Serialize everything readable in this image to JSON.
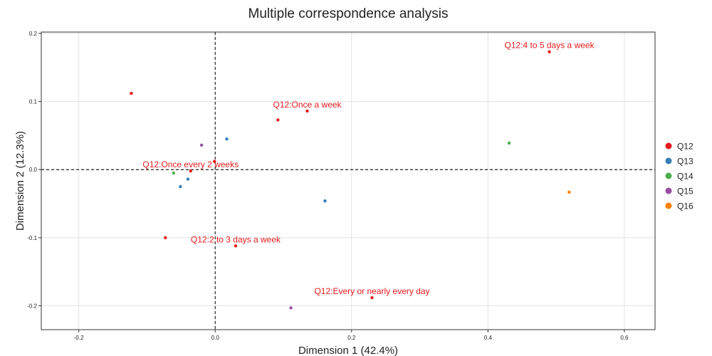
{
  "chart_data": {
    "type": "scatter",
    "title": "Multiple correspondence analysis",
    "xlabel": "Dimension 1 (42.4%)",
    "ylabel": "Dimension 2 (12.3%)",
    "xlim": [
      -0.255,
      0.645
    ],
    "ylim": [
      -0.235,
      0.202
    ],
    "xticks": [
      {
        "value": -0.2,
        "label": "-0.2"
      },
      {
        "value": 0.0,
        "label": "0.0"
      },
      {
        "value": 0.2,
        "label": "0.2"
      },
      {
        "value": 0.4,
        "label": "0.4"
      },
      {
        "value": 0.6,
        "label": "0.6"
      }
    ],
    "yticks": [
      {
        "value": 0.2,
        "label": "0.2"
      },
      {
        "value": 0.1,
        "label": "0.1"
      },
      {
        "value": 0.0,
        "label": "0.0"
      },
      {
        "value": -0.1,
        "label": "-0.1"
      },
      {
        "value": -0.2,
        "label": "-0.2"
      }
    ],
    "grid": true,
    "reference_lines": {
      "x": 0,
      "y": 0,
      "style": "dashed"
    },
    "legend_position": "right",
    "series": [
      {
        "name": "Q12",
        "color": "#e41a1c",
        "points": [
          {
            "x": 0.49,
            "y": 0.173,
            "label": "Q12:4 to 5 days a week"
          },
          {
            "x": 0.135,
            "y": 0.086,
            "label": "Q12:Once a week"
          },
          {
            "x": 0.092,
            "y": 0.073,
            "label": ""
          },
          {
            "x": -0.123,
            "y": 0.112,
            "label": ""
          },
          {
            "x": -0.036,
            "y": -0.002,
            "label": "Q12:Once every 2 weeks"
          },
          {
            "x": -0.001,
            "y": 0.012,
            "label": ""
          },
          {
            "x": -0.073,
            "y": -0.1,
            "label": ""
          },
          {
            "x": 0.03,
            "y": -0.112,
            "label": "Q12:2 to 3 days a week"
          },
          {
            "x": 0.23,
            "y": -0.188,
            "label": "Q12:Every or nearly every day"
          }
        ]
      },
      {
        "name": "Q13",
        "color": "#377eb8",
        "points": [
          {
            "x": 0.017,
            "y": 0.045
          },
          {
            "x": -0.04,
            "y": -0.014
          },
          {
            "x": -0.051,
            "y": -0.025
          },
          {
            "x": 0.161,
            "y": -0.046
          }
        ]
      },
      {
        "name": "Q14",
        "color": "#4daf4a",
        "points": [
          {
            "x": 0.431,
            "y": 0.039
          },
          {
            "x": -0.061,
            "y": -0.005
          }
        ]
      },
      {
        "name": "Q15",
        "color": "#984ea3",
        "points": [
          {
            "x": -0.02,
            "y": 0.036
          },
          {
            "x": 0.111,
            "y": -0.203
          }
        ]
      },
      {
        "name": "Q16",
        "color": "#ff7f00",
        "points": [
          {
            "x": 0.519,
            "y": -0.033
          }
        ]
      }
    ]
  }
}
